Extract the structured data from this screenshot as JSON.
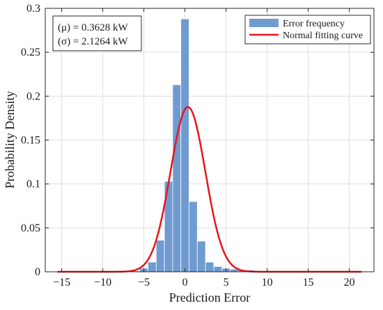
{
  "chart_data": {
    "type": "bar",
    "title": "",
    "xlabel": "Prediction Error",
    "ylabel": "Probability Density",
    "xlim": [
      -17,
      23
    ],
    "ylim": [
      0,
      0.3
    ],
    "grid": true,
    "legend_position": "top-right",
    "x_ticks": [
      -15,
      -10,
      -5,
      0,
      5,
      10,
      15,
      20
    ],
    "y_ticks": [
      0,
      0.05,
      0.1,
      0.15,
      0.2,
      0.25,
      0.3
    ],
    "x_tick_labels": [
      "−15",
      "−10",
      "−5",
      "0",
      "5",
      "10",
      "15",
      "20"
    ],
    "y_tick_labels": [
      "0",
      "0.05",
      "0.1",
      "0.15",
      "0.2",
      "0.25",
      "0.3"
    ],
    "bar_width": 1,
    "series": [
      {
        "name": "Error frequency",
        "kind": "histogram",
        "color": "#6f9bd1",
        "x": [
          -6,
          -5,
          -4,
          -3,
          -2,
          -1,
          0,
          1,
          2,
          3,
          4,
          5,
          6,
          7,
          8,
          9
        ],
        "values": [
          0.001,
          0.004,
          0.011,
          0.036,
          0.103,
          0.213,
          0.288,
          0.08,
          0.035,
          0.011,
          0.006,
          0.004,
          0.003,
          0.002,
          0.002,
          0.001
        ]
      },
      {
        "name": "Normal fitting curve",
        "kind": "line",
        "color": "#e8141b",
        "mu": 0.3628,
        "sigma": 2.1264,
        "x_range": [
          -15.5,
          21.5
        ]
      }
    ]
  },
  "annotation": {
    "mu_line": "(μ) = 0.3628 kW",
    "sigma_line": "(σ) = 2.1264 kW"
  },
  "legend": {
    "items": [
      {
        "label": "Error frequency",
        "color": "#6f9bd1",
        "swatch": "bar"
      },
      {
        "label": "Normal fitting curve",
        "color": "#e8141b",
        "swatch": "line"
      }
    ]
  }
}
